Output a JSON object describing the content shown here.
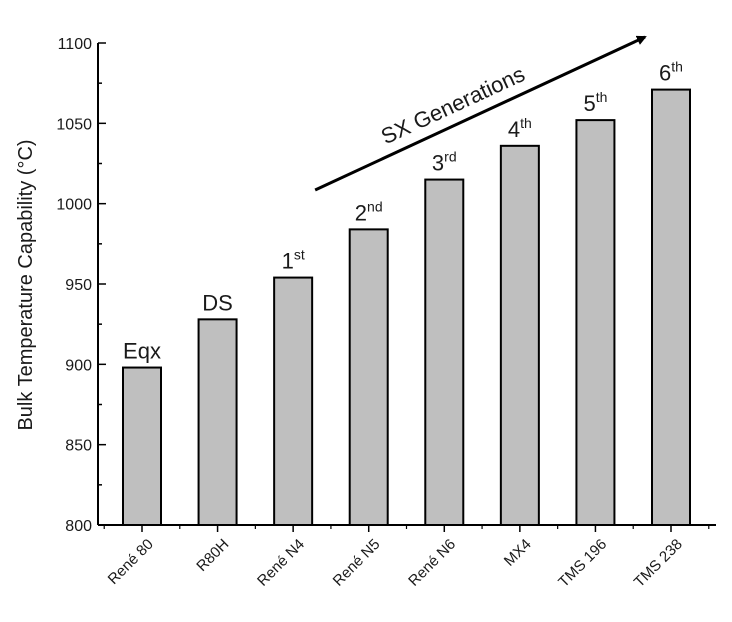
{
  "chart_data": {
    "type": "bar",
    "categories": [
      "René 80",
      "R80H",
      "René N4",
      "René N5",
      "René N6",
      "MX4",
      "TMS 196",
      "TMS 238"
    ],
    "values": [
      898,
      928,
      954,
      984,
      1015,
      1036,
      1052,
      1071
    ],
    "bar_annotations": [
      {
        "text": "Eqx",
        "sup": ""
      },
      {
        "text": "DS",
        "sup": ""
      },
      {
        "text": "1",
        "sup": "st"
      },
      {
        "text": "2",
        "sup": "nd"
      },
      {
        "text": "3",
        "sup": "rd"
      },
      {
        "text": "4",
        "sup": "th"
      },
      {
        "text": "5",
        "sup": "th"
      },
      {
        "text": "6",
        "sup": "th"
      }
    ],
    "ylabel": "Bulk  Temperature Capability (°C)",
    "xlabel": "",
    "ylim": [
      800,
      1100
    ],
    "yticks": [
      "800",
      "850",
      "900",
      "950",
      "1000",
      "1050",
      "1100"
    ],
    "grid": false,
    "annotation_arrow": {
      "label": "SX Generations",
      "from_category": "René N4",
      "to_category": "TMS 238"
    },
    "colors": {
      "bar_fill": "#bfbfbf",
      "bar_stroke": "#000000",
      "axis": "#000000"
    }
  }
}
